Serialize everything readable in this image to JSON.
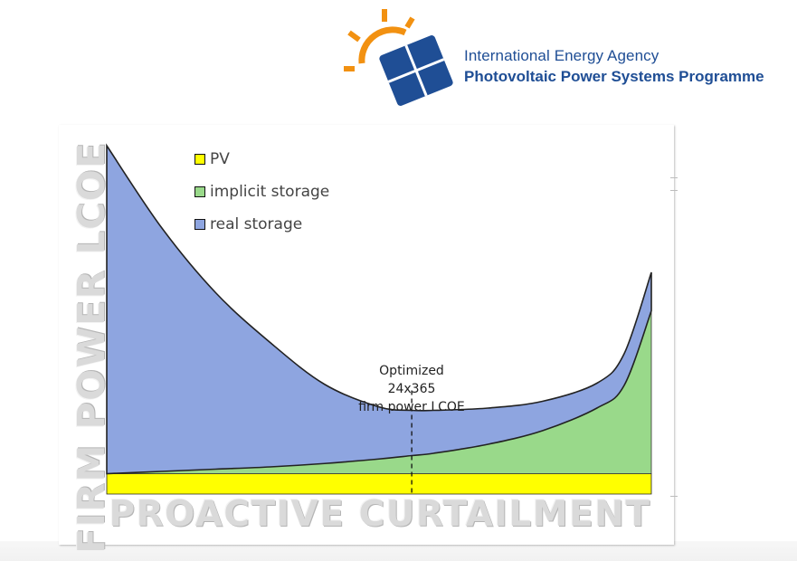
{
  "logo": {
    "line1": "International Energy Agency",
    "line2": "Photovoltaic Power Systems Programme",
    "icon": "sun-with-solar-panel-logo",
    "colors": {
      "sun": "#f29111",
      "panel": "#1f4e95",
      "text": "#1f4e95"
    }
  },
  "chart_data": {
    "type": "area",
    "stacked": true,
    "xlabel": "PROACTIVE CURTAILMENT",
    "ylabel": "FIRM POWER LCOE",
    "axes_ticks": false,
    "grid": false,
    "legend_position": "top-left",
    "x": [
      0,
      0.1,
      0.2,
      0.3,
      0.4,
      0.5,
      0.56,
      0.6,
      0.7,
      0.8,
      0.9,
      0.95,
      1.0
    ],
    "series": [
      {
        "name": "PV",
        "color": "#ffff00",
        "values": [
          0.09,
          0.09,
          0.09,
          0.09,
          0.09,
          0.09,
          0.09,
          0.09,
          0.09,
          0.09,
          0.09,
          0.09,
          0.09
        ]
      },
      {
        "name": "implicit storage",
        "color": "#99d98a",
        "values": [
          0,
          0.01,
          0.02,
          0.03,
          0.045,
          0.065,
          0.08,
          0.09,
          0.13,
          0.19,
          0.29,
          0.39,
          0.72
        ]
      },
      {
        "name": "real storage",
        "color": "#8ea5e0",
        "values": [
          1.45,
          1.08,
          0.78,
          0.55,
          0.35,
          0.23,
          0.2,
          0.19,
          0.16,
          0.13,
          0.11,
          0.14,
          0.17
        ]
      }
    ],
    "annotations": [
      {
        "text_line1": "Optimized 24x365",
        "text_line2": "firm power LCOE",
        "x": 0.56,
        "style": "dashed-vertical-line"
      }
    ]
  }
}
